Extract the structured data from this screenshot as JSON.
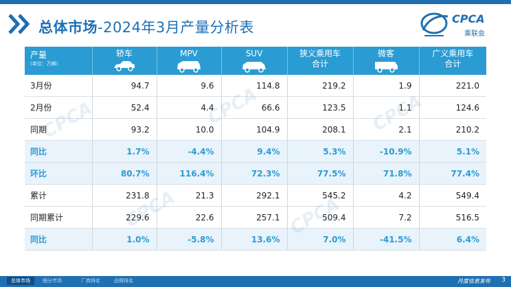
{
  "header": {
    "title_bold": "总体市场",
    "title_rest": "-2024年3月产量分析表",
    "logo_text": "CPCA",
    "logo_sub": "乘联会"
  },
  "table": {
    "corner_label": "产量",
    "corner_unit": "(单位：万辆)",
    "columns": [
      "轿车",
      "MPV",
      "SUV",
      "狭义乘用车合计",
      "微客",
      "广义乘用车合计"
    ],
    "column_lines": [
      [
        "轿车"
      ],
      [
        "MPV"
      ],
      [
        "SUV"
      ],
      [
        "狭义乘用车",
        "合计"
      ],
      [
        "微客"
      ],
      [
        "广义乘用车",
        "合计"
      ]
    ],
    "rows": [
      {
        "label": "3月份",
        "values": [
          "94.7",
          "9.6",
          "114.8",
          "219.2",
          "1.9",
          "221.0"
        ],
        "highlight": false
      },
      {
        "label": "2月份",
        "values": [
          "52.4",
          "4.4",
          "66.6",
          "123.5",
          "1.1",
          "124.6"
        ],
        "highlight": false
      },
      {
        "label": "同期",
        "values": [
          "93.2",
          "10.0",
          "104.9",
          "208.1",
          "2.1",
          "210.2"
        ],
        "highlight": false
      },
      {
        "label": "同比",
        "values": [
          "1.7%",
          "-4.4%",
          "9.4%",
          "5.3%",
          "-10.9%",
          "5.1%"
        ],
        "highlight": true
      },
      {
        "label": "环比",
        "values": [
          "80.7%",
          "116.4%",
          "72.3%",
          "77.5%",
          "71.8%",
          "77.4%"
        ],
        "highlight": true
      },
      {
        "label": "累计",
        "values": [
          "231.8",
          "21.3",
          "292.1",
          "545.2",
          "4.2",
          "549.4"
        ],
        "highlight": false
      },
      {
        "label": "同期累计",
        "values": [
          "229.6",
          "22.6",
          "257.1",
          "509.4",
          "7.2",
          "516.5"
        ],
        "highlight": false
      },
      {
        "label": "同比",
        "values": [
          "1.0%",
          "-5.8%",
          "13.6%",
          "7.0%",
          "-41.5%",
          "6.4%"
        ],
        "highlight": true
      }
    ]
  },
  "footer": {
    "tabs": [
      "总体市场",
      "细分市场",
      "厂商排名",
      "品牌排名"
    ],
    "right_text": "月度信息发布",
    "page": "3"
  },
  "colors": {
    "brand_blue": "#1f6fb3",
    "header_cyan": "#2a9bd3",
    "highlight_row_bg": "#e8f3fb"
  }
}
